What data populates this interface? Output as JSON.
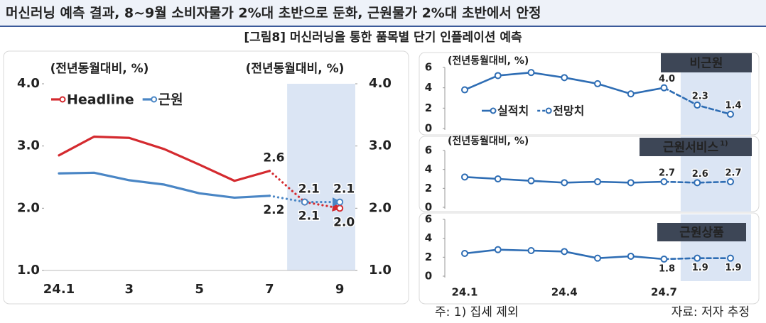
{
  "header": {
    "title": "머신러닝 예측 결과, 8~9월 소비자물가 2%대 초반으로 둔화, 근원물가 2%대 초반에서 안정",
    "subtitle": "[그림8] 머신러닝을 통한 품목별 단기 인플레이션 예측"
  },
  "footer": {
    "note": "주: 1) 집세 제외",
    "source": "자료: 저자 추정"
  },
  "chart_data": [
    {
      "type": "line",
      "y_label": "(전년동월대비, %)",
      "y2_label": "(전년동월대비, %)",
      "categories": [
        "24.1",
        null,
        "3",
        null,
        "5",
        null,
        "7",
        null,
        "9"
      ],
      "forecast_from_index": 7,
      "legend": "upper left",
      "series": [
        {
          "name": "Headline",
          "color": "#d42a2f",
          "values": [
            2.85,
            3.15,
            3.13,
            2.95,
            2.7,
            2.44,
            2.6,
            2.1,
            2.0
          ],
          "value_labels": [
            null,
            null,
            null,
            null,
            null,
            null,
            "2.6",
            "2.1",
            "2.0"
          ]
        },
        {
          "name": "근원",
          "color": "#4a86c5",
          "values": [
            2.56,
            2.57,
            2.45,
            2.38,
            2.24,
            2.17,
            2.2,
            2.1,
            2.1
          ],
          "value_labels": [
            null,
            null,
            null,
            null,
            null,
            null,
            "2.2",
            "2.1",
            "2.1"
          ]
        }
      ],
      "ylim": [
        1,
        4
      ],
      "yticks": [
        {
          "value": 1,
          "label": "1.0"
        },
        {
          "value": 2,
          "label": "2.0"
        },
        {
          "value": 3,
          "label": "3.0"
        },
        {
          "value": 4,
          "label": "4.0"
        }
      ],
      "y2lim": [
        1,
        4
      ],
      "y2ticks": [
        {
          "value": 1,
          "label": "1.0"
        },
        {
          "value": 2,
          "label": "2.0"
        },
        {
          "value": 3,
          "label": "3.0"
        },
        {
          "value": 4,
          "label": "4.0"
        }
      ]
    },
    {
      "type": "line",
      "title": "비근원",
      "y_label": "(전년동월대비, %)",
      "forecast_from_index": 7,
      "legend": "lower left",
      "series": [
        {
          "name": "실적치",
          "color": "#2e6db4",
          "values": [
            3.8,
            5.2,
            5.5,
            5.0,
            4.4,
            3.4,
            4.0,
            null,
            null
          ]
        },
        {
          "name": "전망치",
          "color": "#2e6db4",
          "values": [
            null,
            null,
            null,
            null,
            null,
            null,
            4.0,
            2.3,
            1.4
          ],
          "value_labels": [
            null,
            null,
            null,
            null,
            null,
            null,
            "4.0",
            "2.3",
            "1.4"
          ]
        }
      ],
      "ylim": [
        0,
        6
      ],
      "yticks": [
        0,
        2,
        4,
        6
      ]
    },
    {
      "type": "line",
      "title": "근원서비스",
      "title_note": "1)",
      "y_label": "(전년동월대비, %)",
      "forecast_from_index": 7,
      "series": [
        {
          "name": "실적치",
          "color": "#2e6db4",
          "values": [
            3.2,
            3.0,
            2.8,
            2.6,
            2.7,
            2.6,
            2.7,
            null,
            null
          ]
        },
        {
          "name": "전망치",
          "color": "#2e6db4",
          "values": [
            null,
            null,
            null,
            null,
            null,
            null,
            2.7,
            2.6,
            2.7
          ],
          "value_labels": [
            null,
            null,
            null,
            null,
            null,
            null,
            "2.7",
            "2.6",
            "2.7"
          ]
        }
      ],
      "ylim": [
        0,
        6
      ],
      "yticks": [
        0,
        2,
        4,
        6
      ]
    },
    {
      "type": "line",
      "title": "근원상품",
      "forecast_from_index": 7,
      "categories": [
        "24.1",
        null,
        null,
        "24.4",
        null,
        null,
        "24.7",
        null,
        null
      ],
      "series": [
        {
          "name": "실적치",
          "color": "#2e6db4",
          "values": [
            2.4,
            2.8,
            2.7,
            2.6,
            1.9,
            2.1,
            1.8,
            null,
            null
          ]
        },
        {
          "name": "전망치",
          "color": "#2e6db4",
          "values": [
            null,
            null,
            null,
            null,
            null,
            null,
            1.8,
            1.9,
            1.9
          ],
          "value_labels": [
            null,
            null,
            null,
            null,
            null,
            null,
            "1.8",
            "1.9",
            "1.9"
          ]
        }
      ],
      "ylim": [
        0,
        6
      ],
      "yticks": [
        0,
        2,
        4,
        6
      ]
    }
  ]
}
